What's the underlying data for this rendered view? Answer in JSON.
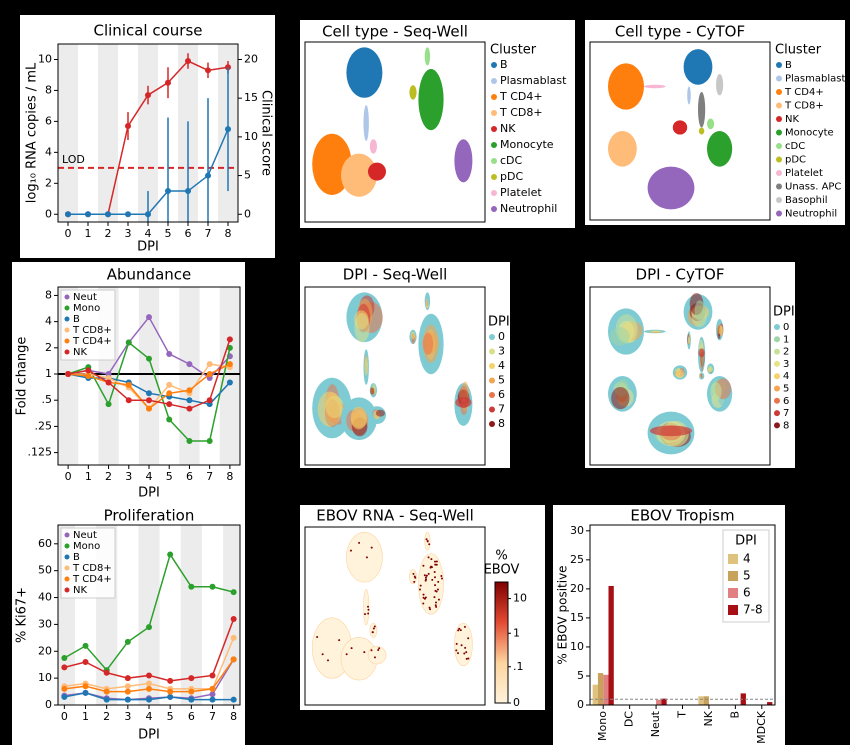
{
  "chart_data": [
    {
      "type": "line",
      "title": "Clinical course",
      "xlabel": "DPI",
      "ylabel": "log₁₀ RNA copies / mL",
      "y2label": "Clinical score",
      "x": [
        0,
        1,
        2,
        3,
        4,
        5,
        6,
        7,
        8
      ],
      "xlim": [
        -0.5,
        8.5
      ],
      "xticks": [
        0,
        1,
        2,
        3,
        4,
        5,
        6,
        7,
        8
      ],
      "ylim": [
        -0.5,
        11
      ],
      "yticks": [
        0,
        2,
        4,
        6,
        8,
        10
      ],
      "y2lim": [
        -1,
        22
      ],
      "y2ticks": [
        0,
        5,
        10,
        15,
        20
      ],
      "shading": true,
      "reference_line": {
        "value": 3,
        "label": "LOD",
        "color": "#d62728",
        "style": "dashed"
      },
      "series": [
        {
          "color": "#d62728",
          "values": [
            0,
            0,
            0,
            5.7,
            7.7,
            8.5,
            9.9,
            9.3,
            9.5
          ],
          "errors": [
            0,
            0,
            0,
            0.9,
            0.6,
            1.0,
            0.5,
            0.5,
            0.4
          ]
        },
        {
          "color": "#1f77b4",
          "axis": "y2",
          "values": [
            0,
            0,
            0,
            0,
            0,
            3,
            3,
            5,
            11
          ],
          "errors": [
            0,
            0,
            0,
            0,
            3,
            9.5,
            9,
            10,
            8
          ]
        }
      ]
    },
    {
      "type": "embedding",
      "title": "Cell type - Seq-Well",
      "legend_title": "Cluster",
      "categories": [
        "B",
        "Plasmablast",
        "T CD4+",
        "T CD8+",
        "NK",
        "Monocyte",
        "cDC",
        "pDC",
        "Platelet",
        "Neutrophil"
      ],
      "colors": [
        "#1f77b4",
        "#aec7e8",
        "#ff7f0e",
        "#ffbb78",
        "#d62728",
        "#2ca02c",
        "#98df8a",
        "#bcbd22",
        "#f7b6d2",
        "#9467bd"
      ]
    },
    {
      "type": "embedding",
      "title": "Cell type - CyTOF",
      "legend_title": "Cluster",
      "categories": [
        "B",
        "Plasmablast",
        "T CD4+",
        "T CD8+",
        "NK",
        "Monocyte",
        "cDC",
        "pDC",
        "Platelet",
        "Unass. APC",
        "Basophil",
        "Neutrophil"
      ],
      "colors": [
        "#1f77b4",
        "#aec7e8",
        "#ff7f0e",
        "#ffbb78",
        "#d62728",
        "#2ca02c",
        "#98df8a",
        "#bcbd22",
        "#f7b6d2",
        "#7f7f7f",
        "#c7c7c7",
        "#9467bd"
      ]
    },
    {
      "type": "line",
      "title": "Abundance",
      "xlabel": "DPI",
      "ylabel": "Fold change",
      "yscale": "log2",
      "x": [
        0,
        1,
        2,
        3,
        4,
        5,
        6,
        7,
        8
      ],
      "xlim": [
        -0.5,
        8.5
      ],
      "xticks": [
        0,
        1,
        2,
        3,
        4,
        5,
        6,
        7,
        8
      ],
      "ylim": [
        0.09,
        10
      ],
      "yticks": [
        8,
        4,
        2,
        1,
        {
          "value": 0.5,
          "label": ".5"
        },
        {
          "value": 0.25,
          "label": ".25"
        },
        {
          "value": 0.125,
          "label": ".125"
        }
      ],
      "shading": true,
      "reference_line": {
        "value": 1,
        "color": "#000000",
        "style": "solid"
      },
      "legend": "upper left",
      "series": [
        {
          "name": "Neut",
          "color": "#9467bd",
          "values": [
            1,
            1.1,
            1,
            2.3,
            4.5,
            1.7,
            1.3,
            0.9,
            1.6
          ]
        },
        {
          "name": "Mono",
          "color": "#2ca02c",
          "values": [
            1,
            1.2,
            0.45,
            2.3,
            1.5,
            0.3,
            0.17,
            0.17,
            2
          ]
        },
        {
          "name": "B",
          "color": "#1f77b4",
          "values": [
            1,
            0.9,
            0.9,
            0.8,
            0.6,
            0.55,
            0.5,
            0.45,
            0.8
          ]
        },
        {
          "name": "T CD8+",
          "color": "#ffbb78",
          "values": [
            1,
            1,
            0.9,
            0.7,
            0.4,
            0.75,
            0.6,
            1.3,
            1.2
          ]
        },
        {
          "name": "T CD4+",
          "color": "#ff7f0e",
          "values": [
            1,
            0.95,
            0.8,
            0.75,
            0.4,
            0.6,
            0.65,
            1,
            1.3
          ]
        },
        {
          "name": "NK",
          "color": "#d62728",
          "values": [
            1,
            1.1,
            0.8,
            0.5,
            0.5,
            0.45,
            0.4,
            0.5,
            2.5
          ]
        }
      ]
    },
    {
      "type": "embedding",
      "title": "DPI - Seq-Well",
      "legend_title": "DPI",
      "categories": [
        "0",
        "3",
        "4",
        "5",
        "6",
        "7",
        "8"
      ],
      "colors": [
        "#7ecbd3",
        "#d9e08c",
        "#f5d36b",
        "#f2a64f",
        "#e8744a",
        "#cc3b38",
        "#8b1a1a"
      ]
    },
    {
      "type": "embedding",
      "title": "DPI - CyTOF",
      "legend_title": "DPI",
      "categories": [
        "0",
        "1",
        "2",
        "3",
        "4",
        "5",
        "6",
        "7",
        "8"
      ],
      "colors": [
        "#7ecbd3",
        "#9fd6a6",
        "#c6e19a",
        "#e5e48a",
        "#f5d36b",
        "#f2a64f",
        "#e8744a",
        "#cc3b38",
        "#8b1a1a"
      ]
    },
    {
      "type": "line",
      "title": "Proliferation",
      "xlabel": "DPI",
      "ylabel": "% Ki67+",
      "x": [
        0,
        1,
        2,
        3,
        4,
        5,
        6,
        7,
        8
      ],
      "xlim": [
        -0.3,
        8.3
      ],
      "xticks": [
        0,
        1,
        2,
        3,
        4,
        5,
        6,
        7,
        8
      ],
      "ylim": [
        0,
        67
      ],
      "yticks": [
        0,
        10,
        20,
        30,
        40,
        50,
        60
      ],
      "shading": true,
      "legend": "upper left",
      "series": [
        {
          "name": "Neut",
          "color": "#9467bd",
          "values": [
            3.5,
            4.5,
            2.5,
            2,
            2.5,
            3,
            2.5,
            4,
            17
          ]
        },
        {
          "name": "Mono",
          "color": "#2ca02c",
          "values": [
            17.5,
            22,
            13,
            23.5,
            29,
            56,
            44,
            44,
            42
          ]
        },
        {
          "name": "B",
          "color": "#1f77b4",
          "values": [
            3,
            4.5,
            2,
            2,
            2,
            3,
            2,
            2,
            2
          ]
        },
        {
          "name": "T CD8+",
          "color": "#ffbb78",
          "values": [
            7,
            8,
            6,
            7,
            8,
            6,
            6,
            6,
            25
          ]
        },
        {
          "name": "T CD4+",
          "color": "#ff7f0e",
          "values": [
            6,
            7,
            5,
            5,
            6,
            5,
            5,
            6,
            17
          ]
        },
        {
          "name": "NK",
          "color": "#d62728",
          "values": [
            14,
            16,
            12,
            10,
            11,
            9,
            10,
            11,
            32
          ]
        }
      ]
    },
    {
      "type": "embedding",
      "title": "EBOV RNA - Seq-Well",
      "colorbar": {
        "label": [
          "%",
          "EBOV"
        ],
        "ticks": [
          0,
          {
            "value": 0.1,
            "label": ".1"
          },
          1,
          10
        ],
        "lim": [
          0,
          30
        ],
        "scale": "symlog",
        "linthresh": 0.01,
        "colors": [
          "#fff3dc",
          "#fdd49e",
          "#e34a33",
          "#7f0000"
        ]
      }
    },
    {
      "type": "bar",
      "title": "EBOV Tropism",
      "ylabel": "% EBOV positive",
      "categories": [
        "Mono",
        "DC",
        "Neut",
        "T",
        "NK",
        "B",
        "MDCK"
      ],
      "ylim": [
        0,
        31
      ],
      "yticks": [
        0,
        5,
        10,
        15,
        20,
        25,
        30
      ],
      "legend": "upper right",
      "legend_title": "DPI",
      "reference_line": {
        "value": 1,
        "color": "#888888",
        "style": "dashed"
      },
      "series": [
        {
          "name": "4",
          "color": "#dfc27d",
          "values": [
            3.5,
            0,
            0,
            0,
            1.5,
            0,
            0
          ]
        },
        {
          "name": "5",
          "color": "#c8a25a",
          "values": [
            5.5,
            0,
            0,
            0,
            1.5,
            0,
            0
          ]
        },
        {
          "name": "6",
          "color": "#e08080",
          "values": [
            5.2,
            0,
            0.9,
            0,
            0,
            0,
            0
          ]
        },
        {
          "name": "7-8",
          "color": "#a50f15",
          "values": [
            20.5,
            0,
            1.1,
            0,
            0,
            2,
            0.5
          ]
        }
      ]
    }
  ]
}
